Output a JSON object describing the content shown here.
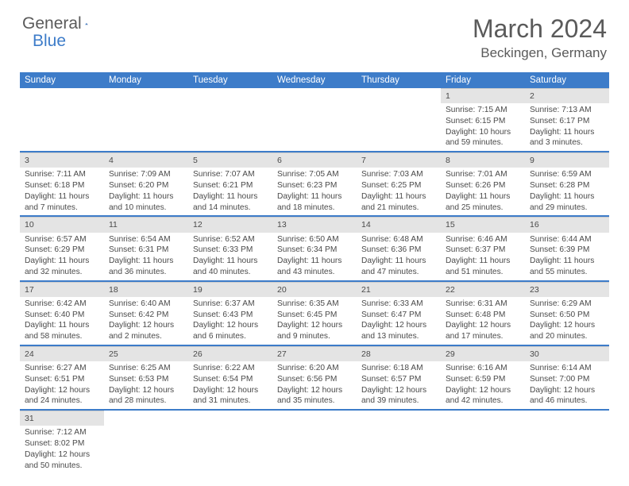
{
  "logo": {
    "general": "General",
    "blue": "Blue"
  },
  "title": "March 2024",
  "location": "Beckingen, Germany",
  "colors": {
    "header_bg": "#3d7cc9",
    "header_fg": "#ffffff",
    "daynum_bg": "#e4e4e4",
    "text": "#4a4a4a",
    "week_sep": "#3d7cc9",
    "logo_gray": "#5a5a5a",
    "logo_blue": "#3d7cc9"
  },
  "days_of_week": [
    "Sunday",
    "Monday",
    "Tuesday",
    "Wednesday",
    "Thursday",
    "Friday",
    "Saturday"
  ],
  "weeks": [
    [
      null,
      null,
      null,
      null,
      null,
      {
        "n": "1",
        "sr": "Sunrise: 7:15 AM",
        "ss": "Sunset: 6:15 PM",
        "dl": "Daylight: 10 hours and 59 minutes."
      },
      {
        "n": "2",
        "sr": "Sunrise: 7:13 AM",
        "ss": "Sunset: 6:17 PM",
        "dl": "Daylight: 11 hours and 3 minutes."
      }
    ],
    [
      {
        "n": "3",
        "sr": "Sunrise: 7:11 AM",
        "ss": "Sunset: 6:18 PM",
        "dl": "Daylight: 11 hours and 7 minutes."
      },
      {
        "n": "4",
        "sr": "Sunrise: 7:09 AM",
        "ss": "Sunset: 6:20 PM",
        "dl": "Daylight: 11 hours and 10 minutes."
      },
      {
        "n": "5",
        "sr": "Sunrise: 7:07 AM",
        "ss": "Sunset: 6:21 PM",
        "dl": "Daylight: 11 hours and 14 minutes."
      },
      {
        "n": "6",
        "sr": "Sunrise: 7:05 AM",
        "ss": "Sunset: 6:23 PM",
        "dl": "Daylight: 11 hours and 18 minutes."
      },
      {
        "n": "7",
        "sr": "Sunrise: 7:03 AM",
        "ss": "Sunset: 6:25 PM",
        "dl": "Daylight: 11 hours and 21 minutes."
      },
      {
        "n": "8",
        "sr": "Sunrise: 7:01 AM",
        "ss": "Sunset: 6:26 PM",
        "dl": "Daylight: 11 hours and 25 minutes."
      },
      {
        "n": "9",
        "sr": "Sunrise: 6:59 AM",
        "ss": "Sunset: 6:28 PM",
        "dl": "Daylight: 11 hours and 29 minutes."
      }
    ],
    [
      {
        "n": "10",
        "sr": "Sunrise: 6:57 AM",
        "ss": "Sunset: 6:29 PM",
        "dl": "Daylight: 11 hours and 32 minutes."
      },
      {
        "n": "11",
        "sr": "Sunrise: 6:54 AM",
        "ss": "Sunset: 6:31 PM",
        "dl": "Daylight: 11 hours and 36 minutes."
      },
      {
        "n": "12",
        "sr": "Sunrise: 6:52 AM",
        "ss": "Sunset: 6:33 PM",
        "dl": "Daylight: 11 hours and 40 minutes."
      },
      {
        "n": "13",
        "sr": "Sunrise: 6:50 AM",
        "ss": "Sunset: 6:34 PM",
        "dl": "Daylight: 11 hours and 43 minutes."
      },
      {
        "n": "14",
        "sr": "Sunrise: 6:48 AM",
        "ss": "Sunset: 6:36 PM",
        "dl": "Daylight: 11 hours and 47 minutes."
      },
      {
        "n": "15",
        "sr": "Sunrise: 6:46 AM",
        "ss": "Sunset: 6:37 PM",
        "dl": "Daylight: 11 hours and 51 minutes."
      },
      {
        "n": "16",
        "sr": "Sunrise: 6:44 AM",
        "ss": "Sunset: 6:39 PM",
        "dl": "Daylight: 11 hours and 55 minutes."
      }
    ],
    [
      {
        "n": "17",
        "sr": "Sunrise: 6:42 AM",
        "ss": "Sunset: 6:40 PM",
        "dl": "Daylight: 11 hours and 58 minutes."
      },
      {
        "n": "18",
        "sr": "Sunrise: 6:40 AM",
        "ss": "Sunset: 6:42 PM",
        "dl": "Daylight: 12 hours and 2 minutes."
      },
      {
        "n": "19",
        "sr": "Sunrise: 6:37 AM",
        "ss": "Sunset: 6:43 PM",
        "dl": "Daylight: 12 hours and 6 minutes."
      },
      {
        "n": "20",
        "sr": "Sunrise: 6:35 AM",
        "ss": "Sunset: 6:45 PM",
        "dl": "Daylight: 12 hours and 9 minutes."
      },
      {
        "n": "21",
        "sr": "Sunrise: 6:33 AM",
        "ss": "Sunset: 6:47 PM",
        "dl": "Daylight: 12 hours and 13 minutes."
      },
      {
        "n": "22",
        "sr": "Sunrise: 6:31 AM",
        "ss": "Sunset: 6:48 PM",
        "dl": "Daylight: 12 hours and 17 minutes."
      },
      {
        "n": "23",
        "sr": "Sunrise: 6:29 AM",
        "ss": "Sunset: 6:50 PM",
        "dl": "Daylight: 12 hours and 20 minutes."
      }
    ],
    [
      {
        "n": "24",
        "sr": "Sunrise: 6:27 AM",
        "ss": "Sunset: 6:51 PM",
        "dl": "Daylight: 12 hours and 24 minutes."
      },
      {
        "n": "25",
        "sr": "Sunrise: 6:25 AM",
        "ss": "Sunset: 6:53 PM",
        "dl": "Daylight: 12 hours and 28 minutes."
      },
      {
        "n": "26",
        "sr": "Sunrise: 6:22 AM",
        "ss": "Sunset: 6:54 PM",
        "dl": "Daylight: 12 hours and 31 minutes."
      },
      {
        "n": "27",
        "sr": "Sunrise: 6:20 AM",
        "ss": "Sunset: 6:56 PM",
        "dl": "Daylight: 12 hours and 35 minutes."
      },
      {
        "n": "28",
        "sr": "Sunrise: 6:18 AM",
        "ss": "Sunset: 6:57 PM",
        "dl": "Daylight: 12 hours and 39 minutes."
      },
      {
        "n": "29",
        "sr": "Sunrise: 6:16 AM",
        "ss": "Sunset: 6:59 PM",
        "dl": "Daylight: 12 hours and 42 minutes."
      },
      {
        "n": "30",
        "sr": "Sunrise: 6:14 AM",
        "ss": "Sunset: 7:00 PM",
        "dl": "Daylight: 12 hours and 46 minutes."
      }
    ],
    [
      {
        "n": "31",
        "sr": "Sunrise: 7:12 AM",
        "ss": "Sunset: 8:02 PM",
        "dl": "Daylight: 12 hours and 50 minutes."
      },
      null,
      null,
      null,
      null,
      null,
      null
    ]
  ]
}
